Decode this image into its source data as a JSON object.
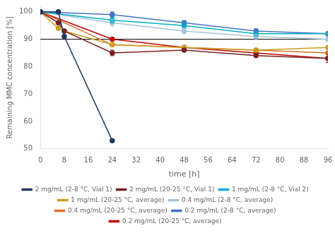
{
  "chart_data": {
    "type": "line",
    "xlabel": "time [h]",
    "ylabel": "Remaining MMC concentration [%]",
    "xlim": [
      0,
      96
    ],
    "ylim": [
      50,
      102
    ],
    "xticks": [
      0,
      8,
      16,
      24,
      32,
      40,
      48,
      56,
      64,
      72,
      80,
      88,
      96
    ],
    "yticks": [
      50,
      60,
      70,
      80,
      90,
      100
    ],
    "grid": false,
    "legend": "bottom",
    "marker": "circle",
    "line_style": "solid",
    "hline_y": 90,
    "series": [
      {
        "name": "2 mg/mL (2-8 °C, Vial 1)",
        "color": "#1f3864",
        "x": [
          0,
          6,
          8,
          24
        ],
        "values": [
          100,
          100,
          91,
          53
        ],
        "yerr": [
          null,
          null,
          null,
          null
        ]
      },
      {
        "name": "2 mg/mL (20-25 °C, Vial 1)",
        "color": "#7b2020",
        "x": [
          0,
          6,
          8,
          24,
          48,
          72,
          96
        ],
        "values": [
          100,
          96,
          93,
          85,
          86,
          84,
          83
        ],
        "yerr": [
          null,
          null,
          null,
          1.0,
          null,
          null,
          null
        ]
      },
      {
        "name": "1 mg/mL (2-8 °C, Vial 2)",
        "color": "#00b0c8",
        "x": [
          0,
          24,
          48,
          72,
          96
        ],
        "values": [
          100,
          97,
          95,
          92,
          92
        ],
        "yerr": [
          null,
          1.2,
          1.0,
          0.8,
          0.8
        ]
      },
      {
        "name": "1 mg/mL (20-25 °C, average)",
        "color": "#c8a020",
        "x": [
          0,
          6,
          8,
          24,
          48,
          72,
          96
        ],
        "values": [
          100,
          94,
          93,
          88,
          87,
          86,
          87
        ],
        "yerr": [
          null,
          null,
          null,
          null,
          null,
          null,
          null
        ]
      },
      {
        "name": "0.4 mg/mL (2-8 °C, average)",
        "color": "#a8c4d8",
        "x": [
          0,
          24,
          48,
          72,
          96
        ],
        "values": [
          100,
          96,
          93,
          91,
          90
        ],
        "yerr": [
          null,
          1.2,
          1.0,
          0.8,
          0.8
        ]
      },
      {
        "name": "0.4 mg/mL (20-25 °C, average)",
        "color": "#e07028",
        "x": [
          0,
          24,
          48,
          72,
          96
        ],
        "values": [
          100,
          88,
          87,
          86,
          85
        ],
        "yerr": [
          null,
          null,
          null,
          null,
          null
        ]
      },
      {
        "name": "0.2 mg/mL (2-8 °C, average)",
        "color": "#4472c4",
        "x": [
          0,
          24,
          48,
          72,
          96
        ],
        "values": [
          100,
          99,
          96,
          93,
          92
        ],
        "yerr": [
          null,
          1.0,
          0.8,
          0.8,
          0.8
        ]
      },
      {
        "name": "0.2 mg/mL (20-25 °C, average)",
        "color": "#c00000",
        "x": [
          0,
          24,
          48,
          72,
          96
        ],
        "values": [
          100,
          90,
          87,
          85,
          83
        ],
        "yerr": [
          null,
          null,
          null,
          null,
          1.5
        ]
      }
    ]
  }
}
